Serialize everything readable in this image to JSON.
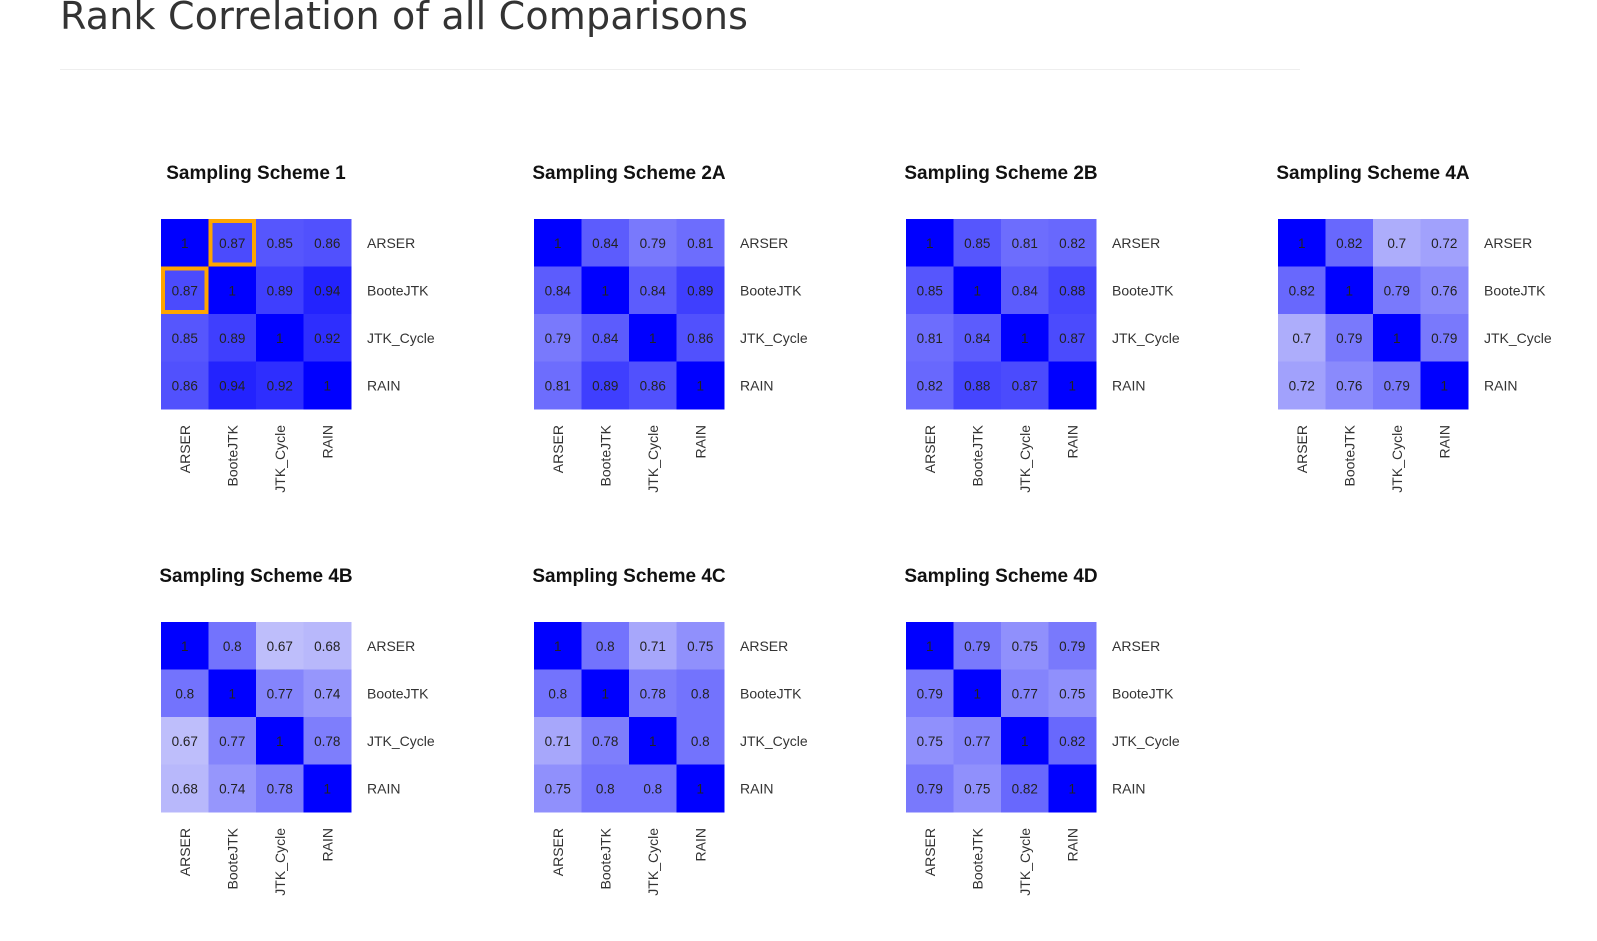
{
  "page_title": "Rank Correlation of all Comparisons",
  "colors": {
    "high": "#0000ff",
    "low": "#e6e6fa",
    "highlight": "#ffa500",
    "cell_text": "#222222",
    "label_text": "#333333"
  },
  "chart_data": [
    {
      "type": "heatmap",
      "title": "Sampling Scheme 1",
      "rows": [
        "ARSER",
        "BooteJTK",
        "JTK_Cycle",
        "RAIN"
      ],
      "cols": [
        "ARSER",
        "BooteJTK",
        "JTK_Cycle",
        "RAIN"
      ],
      "values": [
        [
          1,
          0.87,
          0.85,
          0.86
        ],
        [
          0.87,
          1,
          0.89,
          0.94
        ],
        [
          0.85,
          0.89,
          1,
          0.92
        ],
        [
          0.86,
          0.94,
          0.92,
          1
        ]
      ],
      "highlighted_cells": [
        [
          0,
          1
        ],
        [
          1,
          0
        ]
      ],
      "legend": "none"
    },
    {
      "type": "heatmap",
      "title": "Sampling Scheme 2A",
      "rows": [
        "ARSER",
        "BooteJTK",
        "JTK_Cycle",
        "RAIN"
      ],
      "cols": [
        "ARSER",
        "BooteJTK",
        "JTK_Cycle",
        "RAIN"
      ],
      "values": [
        [
          1,
          0.84,
          0.79,
          0.81
        ],
        [
          0.84,
          1,
          0.84,
          0.89
        ],
        [
          0.79,
          0.84,
          1,
          0.86
        ],
        [
          0.81,
          0.89,
          0.86,
          1
        ]
      ],
      "highlighted_cells": [],
      "legend": "none"
    },
    {
      "type": "heatmap",
      "title": "Sampling Scheme 2B",
      "rows": [
        "ARSER",
        "BooteJTK",
        "JTK_Cycle",
        "RAIN"
      ],
      "cols": [
        "ARSER",
        "BooteJTK",
        "JTK_Cycle",
        "RAIN"
      ],
      "values": [
        [
          1,
          0.85,
          0.81,
          0.82
        ],
        [
          0.85,
          1,
          0.84,
          0.88
        ],
        [
          0.81,
          0.84,
          1,
          0.87
        ],
        [
          0.82,
          0.88,
          0.87,
          1
        ]
      ],
      "highlighted_cells": [],
      "legend": "none"
    },
    {
      "type": "heatmap",
      "title": "Sampling Scheme 4A",
      "rows": [
        "ARSER",
        "BooteJTK",
        "JTK_Cycle",
        "RAIN"
      ],
      "cols": [
        "ARSER",
        "BooteJTK",
        "JTK_Cycle",
        "RAIN"
      ],
      "values": [
        [
          1,
          0.82,
          0.7,
          0.72
        ],
        [
          0.82,
          1,
          0.79,
          0.76
        ],
        [
          0.7,
          0.79,
          1,
          0.79
        ],
        [
          0.72,
          0.76,
          0.79,
          1
        ]
      ],
      "highlighted_cells": [],
      "legend": "none"
    },
    {
      "type": "heatmap",
      "title": "Sampling Scheme 4B",
      "rows": [
        "ARSER",
        "BooteJTK",
        "JTK_Cycle",
        "RAIN"
      ],
      "cols": [
        "ARSER",
        "BooteJTK",
        "JTK_Cycle",
        "RAIN"
      ],
      "values": [
        [
          1,
          0.8,
          0.67,
          0.68
        ],
        [
          0.8,
          1,
          0.77,
          0.74
        ],
        [
          0.67,
          0.77,
          1,
          0.78
        ],
        [
          0.68,
          0.74,
          0.78,
          1
        ]
      ],
      "highlighted_cells": [],
      "legend": "none"
    },
    {
      "type": "heatmap",
      "title": "Sampling Scheme 4C",
      "rows": [
        "ARSER",
        "BooteJTK",
        "JTK_Cycle",
        "RAIN"
      ],
      "cols": [
        "ARSER",
        "BooteJTK",
        "JTK_Cycle",
        "RAIN"
      ],
      "values": [
        [
          1,
          0.8,
          0.71,
          0.75
        ],
        [
          0.8,
          1,
          0.78,
          0.8
        ],
        [
          0.71,
          0.78,
          1,
          0.8
        ],
        [
          0.75,
          0.8,
          0.8,
          1
        ]
      ],
      "highlighted_cells": [],
      "legend": "none"
    },
    {
      "type": "heatmap",
      "title": "Sampling Scheme 4D",
      "rows": [
        "ARSER",
        "BooteJTK",
        "JTK_Cycle",
        "RAIN"
      ],
      "cols": [
        "ARSER",
        "BooteJTK",
        "JTK_Cycle",
        "RAIN"
      ],
      "values": [
        [
          1,
          0.79,
          0.75,
          0.79
        ],
        [
          0.79,
          1,
          0.77,
          0.75
        ],
        [
          0.75,
          0.77,
          1,
          0.82
        ],
        [
          0.79,
          0.75,
          0.82,
          1
        ]
      ],
      "highlighted_cells": [],
      "legend": "none"
    }
  ]
}
